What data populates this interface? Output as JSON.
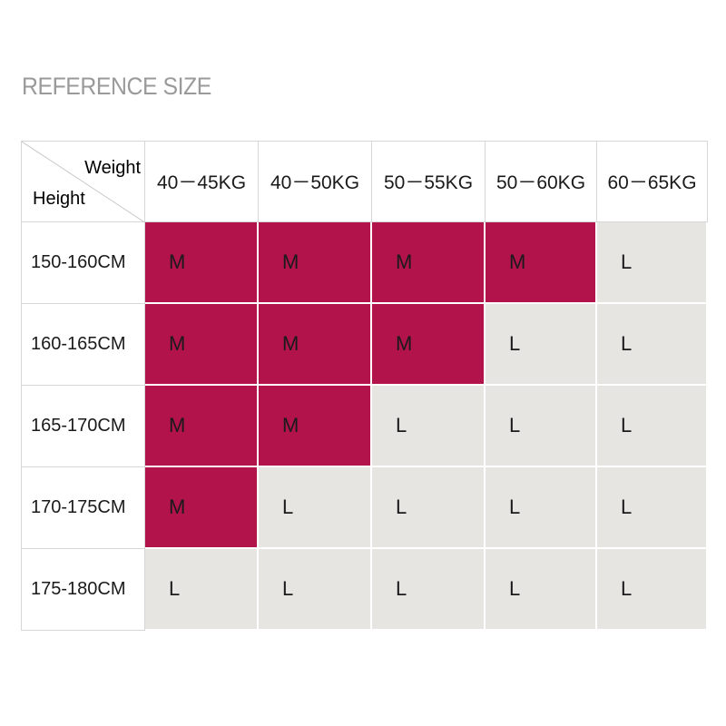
{
  "header": {
    "title": "REFERENCE SIZE"
  },
  "table": {
    "corner": {
      "weight": "Weight",
      "height": "Height"
    },
    "columns": [
      "40－45KG",
      "40－50KG",
      "50－55KG",
      "50－60KG",
      "60－65KG"
    ],
    "rows": [
      {
        "label": "150-160CM",
        "cells": [
          "M",
          "M",
          "M",
          "M",
          "L"
        ]
      },
      {
        "label": "160-165CM",
        "cells": [
          "M",
          "M",
          "M",
          "L",
          "L"
        ]
      },
      {
        "label": "165-170CM",
        "cells": [
          "M",
          "M",
          "L",
          "L",
          "L"
        ]
      },
      {
        "label": "170-175CM",
        "cells": [
          "M",
          "L",
          "L",
          "L",
          "L"
        ]
      },
      {
        "label": "175-180CM",
        "cells": [
          "L",
          "L",
          "L",
          "L",
          "L"
        ]
      }
    ],
    "colors": {
      "M": "#b2134b",
      "L": "#e6e5e1"
    }
  }
}
